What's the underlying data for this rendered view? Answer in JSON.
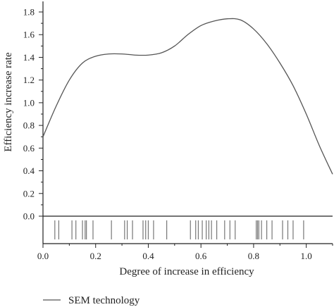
{
  "chart_data": {
    "type": "line",
    "title": "",
    "xlabel": "Degree of increase in efficiency",
    "ylabel": "Efficiency increase rate",
    "xlim": [
      0.0,
      1.1
    ],
    "ylim": [
      0.0,
      1.85
    ],
    "x_ticks": [
      0.0,
      0.2,
      0.4,
      0.6,
      0.8,
      1.0
    ],
    "x_tick_labels": [
      "0.0",
      "0.2",
      "0.4",
      "0.6",
      "0.8",
      "1.0"
    ],
    "y_ticks": [
      0.0,
      0.2,
      0.4,
      0.6,
      0.8,
      1.0,
      1.2,
      1.4,
      1.6,
      1.8
    ],
    "y_tick_labels": [
      "0.0",
      "0.2",
      "0.4",
      "0.6",
      "0.8",
      "1.0",
      "1.2",
      "1.4",
      "1.6",
      "1.8"
    ],
    "grid": false,
    "legend_position": "bottom-left",
    "line_color": "#555555",
    "series": [
      {
        "name": "SEM technology",
        "x": [
          0.0,
          0.05,
          0.1,
          0.15,
          0.2,
          0.25,
          0.3,
          0.35,
          0.4,
          0.45,
          0.5,
          0.55,
          0.6,
          0.65,
          0.7,
          0.75,
          0.8,
          0.85,
          0.9,
          0.95,
          1.0,
          1.05,
          1.1
        ],
        "y": [
          0.7,
          0.97,
          1.2,
          1.35,
          1.41,
          1.43,
          1.43,
          1.42,
          1.42,
          1.44,
          1.5,
          1.6,
          1.68,
          1.72,
          1.74,
          1.73,
          1.65,
          1.52,
          1.35,
          1.15,
          0.9,
          0.62,
          0.37
        ]
      }
    ],
    "rug": [
      0.045,
      0.06,
      0.11,
      0.125,
      0.15,
      0.16,
      0.165,
      0.19,
      0.26,
      0.31,
      0.32,
      0.34,
      0.38,
      0.39,
      0.4,
      0.42,
      0.47,
      0.56,
      0.58,
      0.59,
      0.605,
      0.62,
      0.63,
      0.64,
      0.66,
      0.69,
      0.71,
      0.73,
      0.81,
      0.815,
      0.82,
      0.83,
      0.85,
      0.87,
      0.91,
      0.93,
      0.95,
      0.99
    ]
  }
}
